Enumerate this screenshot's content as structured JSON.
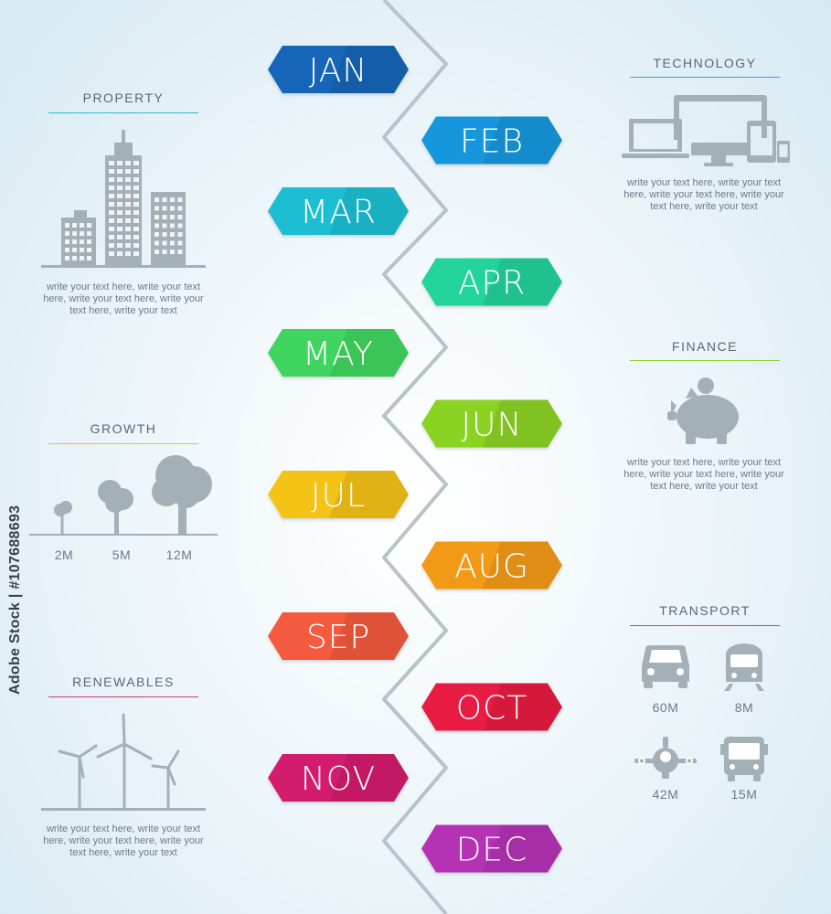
{
  "months": [
    {
      "label": "JAN",
      "color": "#1565b8"
    },
    {
      "label": "FEB",
      "color": "#1497dd"
    },
    {
      "label": "MAR",
      "color": "#1ebfd2"
    },
    {
      "label": "APR",
      "color": "#22d39b"
    },
    {
      "label": "MAY",
      "color": "#3fd560"
    },
    {
      "label": "JUN",
      "color": "#8bd322"
    },
    {
      "label": "JUL",
      "color": "#f5c218"
    },
    {
      "label": "AUG",
      "color": "#f29a14"
    },
    {
      "label": "SEP",
      "color": "#f45a3c"
    },
    {
      "label": "OCT",
      "color": "#e81f42"
    },
    {
      "label": "NOV",
      "color": "#d41f6e"
    },
    {
      "label": "DEC",
      "color": "#b531b5"
    }
  ],
  "property": {
    "title": "PROPERTY",
    "accent": "#2bbcd4",
    "text": "write your text here, write your text here, write your text here, write your text here, write your text"
  },
  "growth": {
    "title": "GROWTH",
    "accent": "#f3c21a",
    "values": [
      "2M",
      "5M",
      "12M"
    ]
  },
  "renewables": {
    "title": "RENEWABLES",
    "accent": "#d8346a",
    "text": "write your text here, write your text here, write your text here, write your text here, write your text"
  },
  "technology": {
    "title": "TECHNOLOGY",
    "accent": "#2aa7d8",
    "text": "write your text here, write your text here, write your text here, write your text here, write your text"
  },
  "finance": {
    "title": "FINANCE",
    "accent": "#8bd322",
    "text": "write your text here, write your text here, write your text here, write your text here, write your text"
  },
  "transport": {
    "title": "TRANSPORT",
    "accent": "#e5385a",
    "values": [
      "60M",
      "8M",
      "42M",
      "15M"
    ]
  },
  "watermark": "Adobe Stock | #107688693",
  "icon_color": "#a3b0b7"
}
